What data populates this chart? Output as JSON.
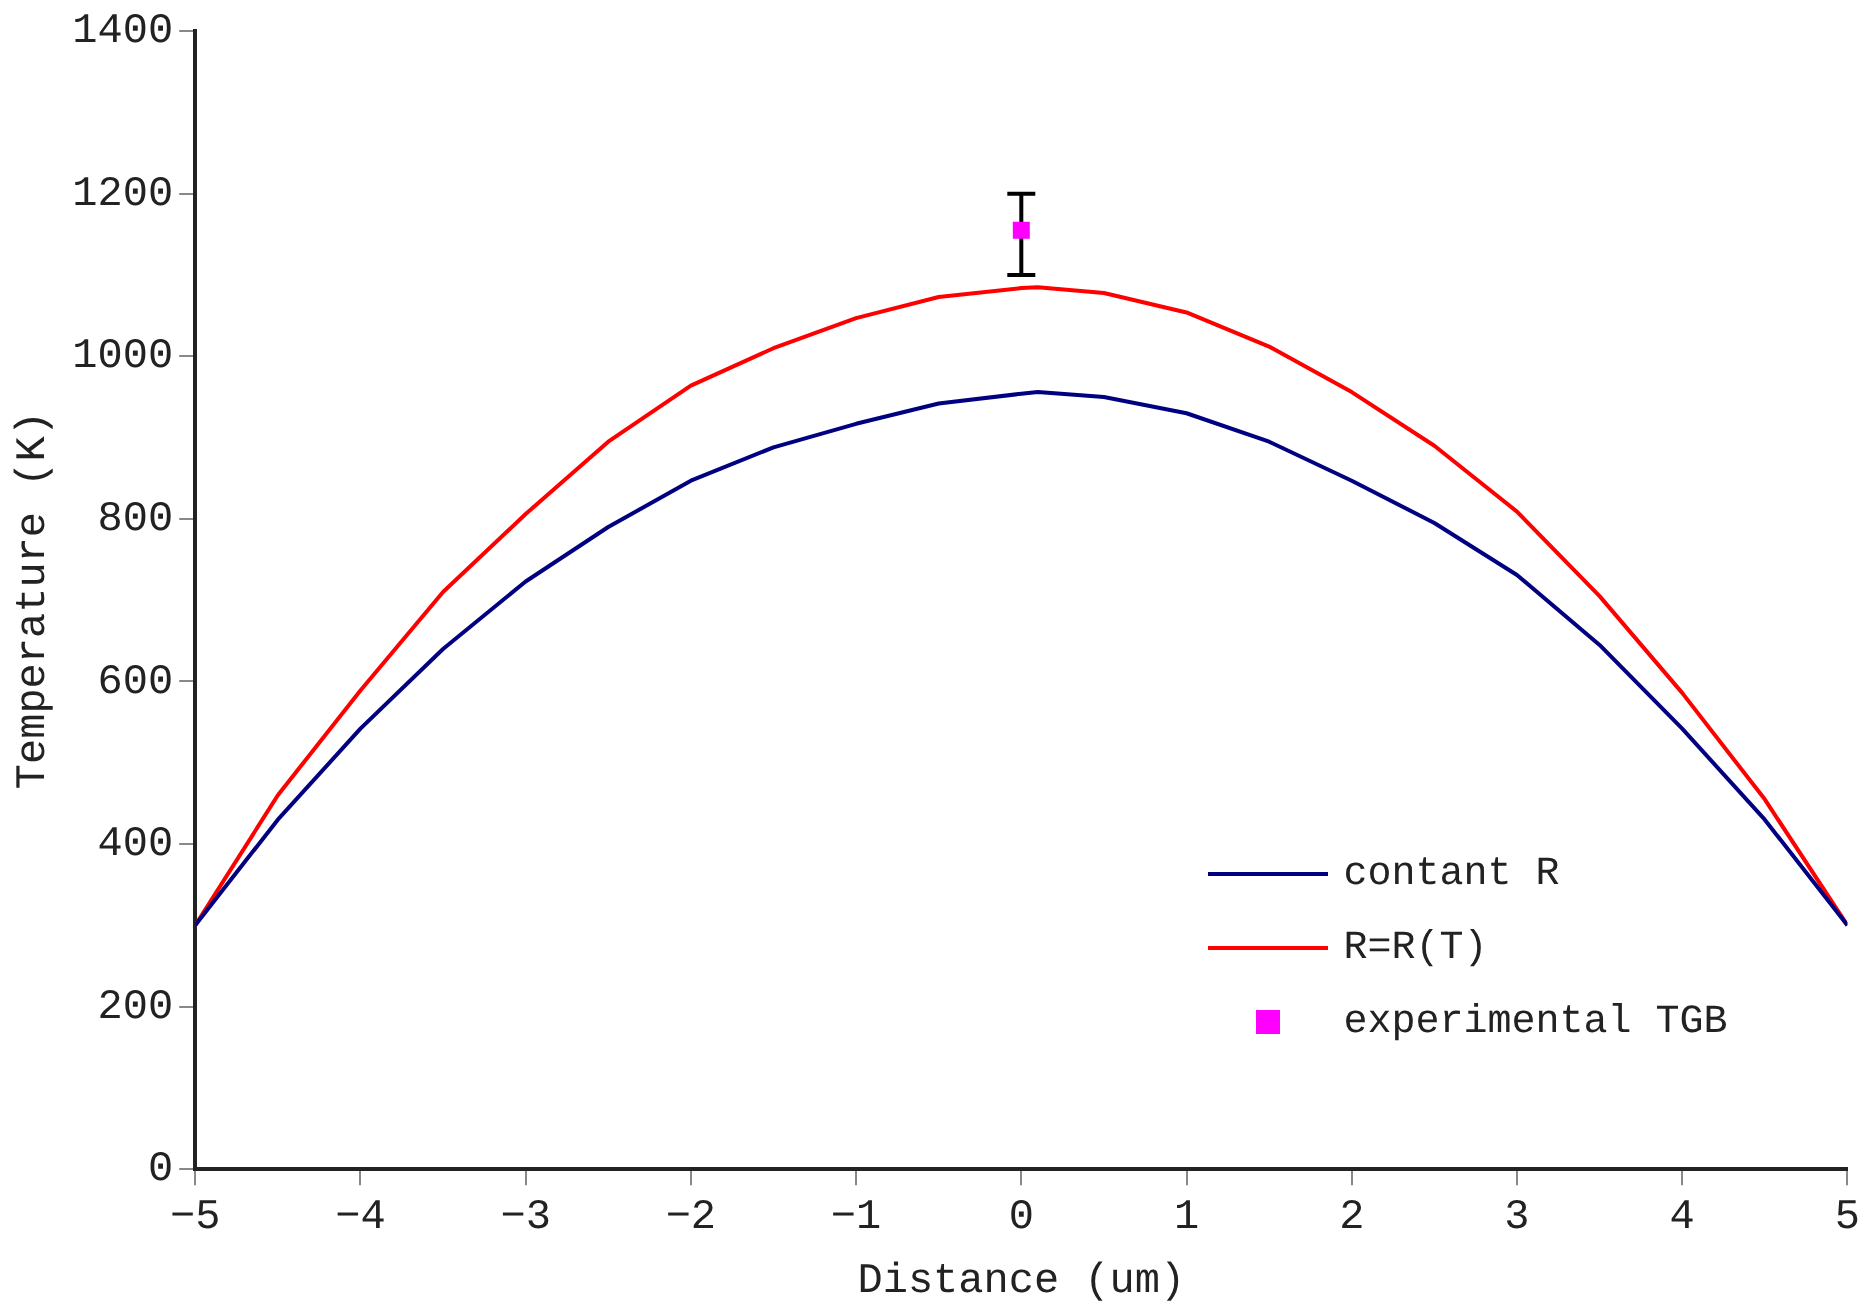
{
  "chart_data": {
    "type": "line",
    "xlabel": "Distance (um)",
    "ylabel": "Temperature (K)",
    "xlim": [
      -5,
      5
    ],
    "xticks": [
      {
        "value": -5,
        "label": "−5"
      },
      {
        "value": -4,
        "label": "−4"
      },
      {
        "value": -3,
        "label": "−3"
      },
      {
        "value": -2,
        "label": "−2"
      },
      {
        "value": -1,
        "label": "−1"
      },
      0,
      1,
      2,
      3,
      4,
      5
    ],
    "ylim": [
      0,
      1400
    ],
    "yticks": [
      0,
      200,
      400,
      600,
      800,
      1000,
      1200,
      1400
    ],
    "grid": false,
    "legend": "bottom right",
    "line_style": "solid",
    "series": [
      {
        "name": "contant R",
        "marker": "none",
        "color": "#000080",
        "x": [
          -5,
          -4.5,
          -4,
          -3.5,
          -3,
          -2.5,
          -2,
          -1.5,
          -1,
          -0.5,
          0,
          0.1,
          0.5,
          1,
          1.5,
          2,
          2.5,
          3,
          3.5,
          4,
          4.5,
          5
        ],
        "values": [
          300,
          430,
          542,
          640,
          723,
          790,
          847,
          888,
          917,
          942,
          954,
          956,
          950,
          930,
          895,
          847,
          795,
          731,
          645,
          542,
          430,
          300
        ]
      },
      {
        "name": "R=R(T)",
        "marker": "none",
        "color": "#ff0000",
        "x": [
          -5,
          -4.5,
          -4,
          -3.5,
          -3,
          -2.5,
          -2,
          -1.5,
          -1,
          -0.5,
          0,
          0.1,
          0.5,
          1,
          1.5,
          2,
          2.5,
          3,
          3.5,
          4,
          4.5,
          5
        ],
        "values": [
          300,
          460,
          589,
          710,
          806,
          895,
          964,
          1010,
          1047,
          1073,
          1084,
          1085,
          1078,
          1054,
          1012,
          956,
          890,
          809,
          705,
          586,
          455,
          300
        ]
      },
      {
        "name": "experimental TGB",
        "type": "scatter",
        "marker": "square",
        "color": "#ff00ff",
        "x": [
          0
        ],
        "values": [
          1155
        ],
        "errors": [
          [
            1100,
            1200
          ]
        ]
      }
    ]
  }
}
